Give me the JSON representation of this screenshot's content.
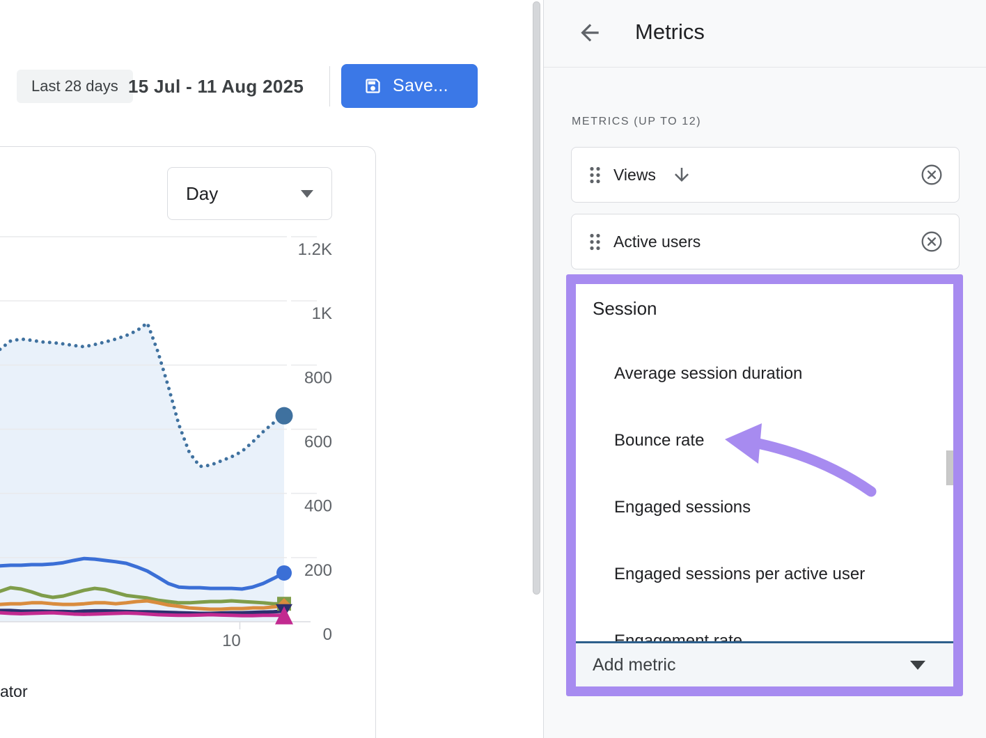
{
  "header": {
    "date_chip": "Last 28 days",
    "date_range": "15 Jul - 11 Aug 2025",
    "save_label": "Save...",
    "accent_blue": "#3b78e7"
  },
  "chart_card": {
    "granularity_value": "Day",
    "cut_text": "ator"
  },
  "chart_data": {
    "type": "line",
    "title": "",
    "grid": "on",
    "legend": "off",
    "x_axis": {
      "num_points": 28,
      "tick_label": "10",
      "tick_point_index": 22
    },
    "y_axis": {
      "tick_labels": [
        "1.2K",
        "1K",
        "800",
        "600",
        "400",
        "200",
        "0"
      ],
      "tick_values": [
        1200,
        1000,
        800,
        600,
        400,
        200,
        0
      ],
      "ylim": [
        0,
        1200
      ]
    },
    "series": [
      {
        "name": "views-dotted",
        "style": "dotted",
        "color": "#3f719f",
        "area_fill": "#e9f1fa",
        "end_marker": "circle",
        "marker_size": 12.5,
        "values": [
          849,
          875,
          881,
          877,
          872,
          870,
          866,
          861,
          857,
          864,
          872,
          881,
          892,
          907,
          931,
          842,
          733,
          614,
          527,
          484,
          488,
          501,
          514,
          531,
          560,
          592,
          620,
          642
        ]
      },
      {
        "name": "active-users-blue",
        "style": "solid",
        "color": "#3b6fd6",
        "end_marker": "circle",
        "marker_size": 11,
        "values": [
          174,
          176,
          176,
          178,
          178,
          180,
          184,
          191,
          197,
          195,
          191,
          187,
          182,
          171,
          158,
          139,
          119,
          108,
          106,
          106,
          104,
          104,
          104,
          102,
          108,
          119,
          135,
          152
        ]
      },
      {
        "name": "metric-olive",
        "style": "solid",
        "color": "#7f9d4a",
        "end_marker": "square",
        "marker_size": 10,
        "values": [
          95,
          106,
          102,
          93,
          82,
          76,
          80,
          89,
          98,
          104,
          100,
          91,
          82,
          78,
          74,
          67,
          63,
          59,
          59,
          61,
          63,
          63,
          65,
          63,
          61,
          59,
          56,
          56
        ]
      },
      {
        "name": "metric-orange",
        "style": "solid",
        "color": "#d98c3e",
        "end_marker": "diamond",
        "marker_size": 11,
        "values": [
          54,
          56,
          56,
          59,
          59,
          56,
          54,
          54,
          56,
          59,
          59,
          56,
          59,
          63,
          65,
          59,
          52,
          48,
          43,
          41,
          39,
          39,
          41,
          41,
          43,
          43,
          46,
          50
        ]
      },
      {
        "name": "metric-navy",
        "style": "solid",
        "color": "#2c2f6e",
        "end_marker": "triangle-down",
        "marker_size": 12,
        "values": [
          35,
          35,
          33,
          33,
          33,
          32,
          32,
          31,
          33,
          34,
          34,
          33,
          32,
          31,
          31,
          30,
          29,
          28,
          27,
          26,
          26,
          27,
          28,
          28,
          29,
          30,
          31,
          33
        ]
      },
      {
        "name": "metric-magenta",
        "style": "solid",
        "color": "#c22a90",
        "end_marker": "triangle-up",
        "marker_size": 13,
        "values": [
          28,
          26,
          25,
          26,
          27,
          28,
          26,
          24,
          23,
          24,
          25,
          26,
          27,
          26,
          24,
          22,
          21,
          20,
          20,
          21,
          22,
          21,
          20,
          19,
          19,
          20,
          20,
          20
        ]
      }
    ]
  },
  "panel": {
    "title": "Metrics",
    "section_label": "METRICS (UP TO 12)",
    "metrics": [
      {
        "label": "Views",
        "sorted": true
      },
      {
        "label": "Active users",
        "sorted": false
      }
    ],
    "dropdown": {
      "group_label": "Session",
      "options": [
        "Average session duration",
        "Bounce rate",
        "Engaged sessions",
        "Engaged sessions per active user",
        "Engagement rate"
      ],
      "add_metric_label": "Add metric"
    },
    "highlight_color": "#a78bf0",
    "add_metric_underline_color": "#2d5f8c"
  }
}
